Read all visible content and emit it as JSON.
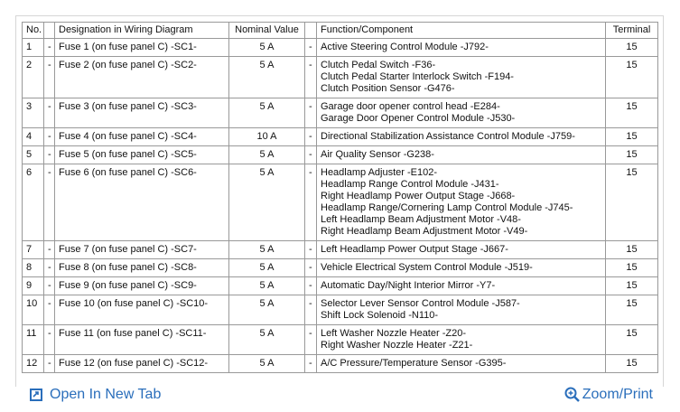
{
  "table": {
    "headers": {
      "no": "No.",
      "designation": "Designation in Wiring Diagram",
      "nominal_value": "Nominal Value",
      "function": "Function/Component",
      "terminal": "Terminal"
    },
    "rows": [
      {
        "no": "1",
        "sep1": "-",
        "designation": "Fuse 1 (on fuse panel C) -SC1-",
        "value": "5 A",
        "sep2": "-",
        "function": [
          "Active Steering Control Module -J792-"
        ],
        "terminal": "15"
      },
      {
        "no": "2",
        "sep1": "-",
        "designation": "Fuse 2 (on fuse panel C) -SC2-",
        "value": "5 A",
        "sep2": "-",
        "function": [
          "Clutch Pedal Switch -F36-",
          "Clutch Pedal Starter Interlock Switch -F194-",
          "Clutch Position Sensor -G476-"
        ],
        "terminal": "15"
      },
      {
        "no": "3",
        "sep1": "-",
        "designation": "Fuse 3 (on fuse panel C) -SC3-",
        "value": "5 A",
        "sep2": "-",
        "function": [
          "Garage door opener control head -E284-",
          "Garage Door Opener Control Module -J530-"
        ],
        "terminal": "15"
      },
      {
        "no": "4",
        "sep1": "-",
        "designation": "Fuse 4 (on fuse panel C) -SC4-",
        "value": "10 A",
        "sep2": "-",
        "function": [
          "Directional Stabilization Assistance Control Module -J759-"
        ],
        "terminal": "15"
      },
      {
        "no": "5",
        "sep1": "-",
        "designation": "Fuse 5 (on fuse panel C) -SC5-",
        "value": "5 A",
        "sep2": "-",
        "function": [
          "Air Quality Sensor -G238-"
        ],
        "terminal": "15"
      },
      {
        "no": "6",
        "sep1": "-",
        "designation": "Fuse 6 (on fuse panel C) -SC6-",
        "value": "5 A",
        "sep2": "-",
        "function": [
          "Headlamp Adjuster -E102-",
          "Headlamp Range Control Module -J431-",
          "Right Headlamp Power Output Stage -J668-",
          "Headlamp Range/Cornering Lamp Control Module -J745-",
          "Left Headlamp Beam Adjustment Motor -V48-",
          "Right Headlamp Beam Adjustment Motor -V49-"
        ],
        "terminal": "15"
      },
      {
        "no": "7",
        "sep1": "-",
        "designation": "Fuse 7 (on fuse panel C) -SC7-",
        "value": "5 A",
        "sep2": "-",
        "function": [
          "Left Headlamp Power Output Stage -J667-"
        ],
        "terminal": "15"
      },
      {
        "no": "8",
        "sep1": "-",
        "designation": "Fuse 8 (on fuse panel C) -SC8-",
        "value": "5 A",
        "sep2": "-",
        "function": [
          "Vehicle Electrical System Control Module -J519-"
        ],
        "terminal": "15"
      },
      {
        "no": "9",
        "sep1": "-",
        "designation": "Fuse 9 (on fuse panel C) -SC9-",
        "value": "5 A",
        "sep2": "-",
        "function": [
          "Automatic Day/Night Interior Mirror -Y7-"
        ],
        "terminal": "15"
      },
      {
        "no": "10",
        "sep1": "-",
        "designation": "Fuse 10 (on fuse panel C) -SC10-",
        "value": "5 A",
        "sep2": "-",
        "function": [
          "Selector Lever Sensor Control Module -J587-",
          "Shift Lock Solenoid -N110-"
        ],
        "terminal": "15"
      },
      {
        "no": "11",
        "sep1": "-",
        "designation": "Fuse 11 (on fuse panel C) -SC11-",
        "value": "5 A",
        "sep2": "-",
        "function": [
          "Left Washer Nozzle Heater -Z20-",
          "Right Washer Nozzle Heater -Z21-"
        ],
        "terminal": "15"
      },
      {
        "no": "12",
        "sep1": "-",
        "designation": "Fuse 12 (on fuse panel C) -SC12-",
        "value": "5 A",
        "sep2": "-",
        "function": [
          "A/C Pressure/Temperature Sensor -G395-"
        ],
        "terminal": "15"
      }
    ]
  },
  "links": {
    "open": "Open In New Tab",
    "zoom": "Zoom/Print"
  }
}
